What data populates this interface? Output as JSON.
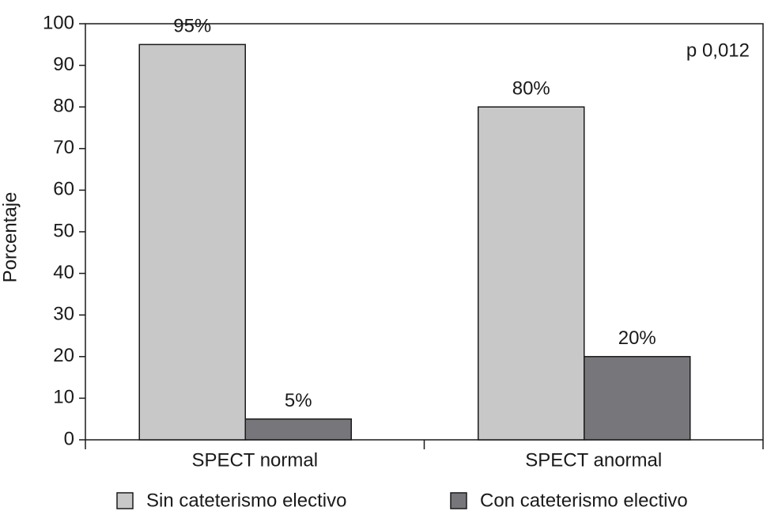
{
  "chart_data": {
    "type": "bar",
    "y_label": "Porcentaje",
    "annotation": "p 0,012",
    "categories": [
      "SPECT normal",
      "SPECT anormal"
    ],
    "series": [
      {
        "name": "Sin cateterismo electivo",
        "color": "#c8c8c8",
        "values": [
          95,
          80
        ],
        "value_labels": [
          "95%",
          "80%"
        ]
      },
      {
        "name": "Con cateterismo electivo",
        "color": "#77777b",
        "values": [
          5,
          20
        ],
        "value_labels": [
          "5%",
          "20%"
        ]
      }
    ],
    "ylim": [
      0,
      100
    ],
    "yticks": [
      0,
      10,
      20,
      30,
      40,
      50,
      60,
      70,
      80,
      90,
      100
    ]
  }
}
